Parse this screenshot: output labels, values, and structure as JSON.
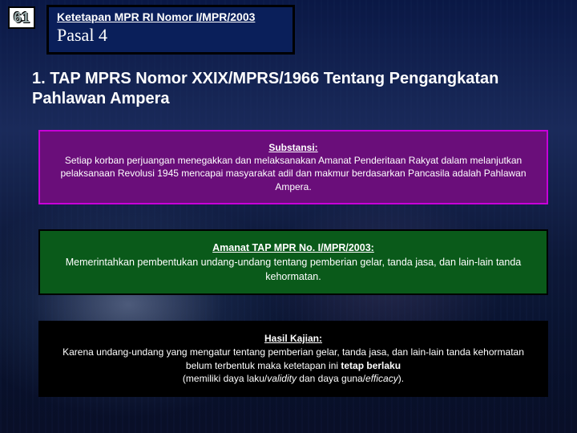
{
  "slide_number": "61",
  "title": {
    "line1": "Ketetapan MPR RI Nomor I/MPR/2003",
    "line2": "Pasal 4"
  },
  "heading": "1. TAP MPRS Nomor XXIX/MPRS/1966 Tentang Pengangkatan Pahlawan Ampera",
  "substansi": {
    "label": "Substansi:",
    "body": "Setiap korban perjuangan menegakkan dan melaksanakan Amanat Penderitaan Rakyat dalam melanjutkan pelaksanaan Revolusi 1945 mencapai masyarakat adil dan makmur berdasarkan Pancasila adalah Pahlawan Ampera."
  },
  "amanat": {
    "label": "Amanat TAP MPR No. I/MPR/2003:",
    "body": "Memerintahkan pembentukan undang-undang tentang pemberian gelar, tanda jasa, dan lain-lain tanda kehormatan."
  },
  "hasil": {
    "label": "Hasil Kajian:",
    "line1": "Karena undang-undang yang mengatur tentang pemberian gelar, tanda jasa, dan lain-lain tanda kehormatan belum terbentuk maka ketetapan ini ",
    "bold1": "tetap berlaku",
    "line2_prefix": "(memiliki daya laku/",
    "italic1": "validity",
    "line2_mid": " dan daya guna/",
    "italic2": "efficacy",
    "line2_suffix": ")."
  },
  "colors": {
    "slide_bg_top": "#0a1845",
    "slide_bg_bottom": "#050f28",
    "titlebox_bg": "#0a1f5a",
    "substansi_bg": "#6a0e7a",
    "substansi_border": "#c800d8",
    "amanat_bg": "#0a5a1a",
    "hasil_bg": "#000000",
    "text": "#ffffff"
  }
}
